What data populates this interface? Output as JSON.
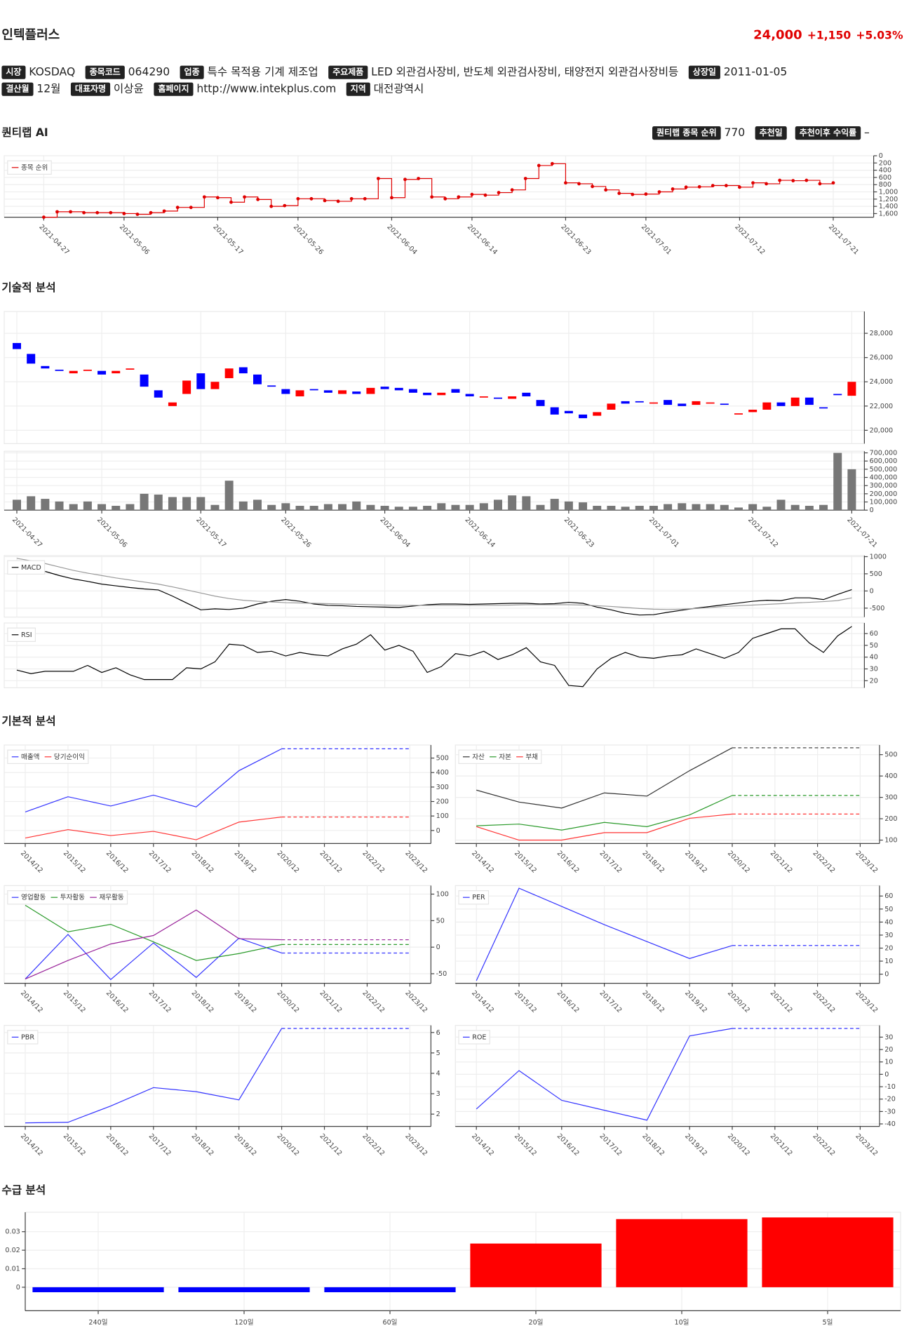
{
  "header": {
    "name": "인텍플러스",
    "price": "24,000",
    "change": "+1,150",
    "change_pct": "+5.03%",
    "info_rows": [
      [
        {
          "label": "시장",
          "value": "KOSDAQ"
        },
        {
          "label": "종목코드",
          "value": "064290"
        },
        {
          "label": "업종",
          "value": "특수 목적용 기계 제조업"
        },
        {
          "label": "주요제품",
          "value": "LED 외관검사장비, 반도체 외관검사장비, 태양전지 외관검사장비등"
        },
        {
          "label": "상장일",
          "value": "2011-01-05"
        }
      ],
      [
        {
          "label": "결산월",
          "value": "12월"
        },
        {
          "label": "대표자명",
          "value": "이상윤"
        },
        {
          "label": "홈페이지",
          "value": "http://www.intekplus.com",
          "link": true
        },
        {
          "label": "지역",
          "value": "대전광역시"
        }
      ]
    ]
  },
  "sections": {
    "ai": "퀀티랩 AI",
    "technical": "기술적 분석",
    "fundamental": "기본적 분석",
    "supply": "수급 분석"
  },
  "ai": {
    "items": [
      {
        "label": "퀀티랩 종목 순위",
        "value": "770"
      },
      {
        "label": "추천일"
      },
      {
        "label": "추천이후 수익률",
        "value": "–"
      }
    ]
  },
  "chart_data": [
    {
      "type": "step",
      "categories": [
        "2021-04-27",
        null,
        null,
        null,
        null,
        null,
        "2021-05-06",
        null,
        null,
        null,
        null,
        null,
        null,
        "2021-05-17",
        null,
        null,
        null,
        null,
        null,
        "2021-05-26",
        null,
        null,
        null,
        null,
        null,
        null,
        "2021-06-04",
        null,
        null,
        null,
        null,
        null,
        "2021-06-14",
        null,
        null,
        null,
        null,
        null,
        null,
        "2021-06-23",
        null,
        null,
        null,
        null,
        null,
        "2021-07-01",
        null,
        null,
        null,
        null,
        null,
        null,
        "2021-07-12",
        null,
        null,
        null,
        null,
        null,
        null,
        "2021-07-21"
      ],
      "series": [
        {
          "name": "종목 순위",
          "color": "#e00000",
          "values": [
            1700,
            1550,
            1550,
            1575,
            1575,
            1575,
            1600,
            1620,
            1575,
            1530,
            1430,
            1430,
            1140,
            1160,
            1285,
            1140,
            1210,
            1400,
            1380,
            1190,
            1190,
            1240,
            1260,
            1190,
            1190,
            630,
            1160,
            655,
            630,
            1140,
            1190,
            1140,
            1070,
            1090,
            1020,
            945,
            630,
            270,
            220,
            750,
            775,
            850,
            945,
            1040,
            1070,
            1060,
            1000,
            920,
            870,
            860,
            825,
            825,
            870,
            750,
            775,
            680,
            690,
            680,
            775,
            750
          ]
        }
      ],
      "ylim": [
        0,
        1700
      ],
      "y_inverted": true,
      "ytick_color": "#e00000",
      "yticks": [
        0,
        200,
        400,
        600,
        800,
        {
          "value": 1000,
          "label": "1,000"
        },
        {
          "value": 1200,
          "label": "1,200"
        },
        {
          "value": 1400,
          "label": "1,400"
        },
        {
          "value": 1600,
          "label": "1,600"
        }
      ],
      "grid": true
    },
    {
      "type": "candlestick",
      "up_color": "#ff0000",
      "down_color": "#0000ff",
      "open": [
        27200,
        26300,
        25300,
        25000,
        24700,
        24900,
        24900,
        24700,
        25000,
        24600,
        23300,
        22000,
        23000,
        24700,
        23400,
        24300,
        25200,
        24600,
        23700,
        23400,
        22800,
        23400,
        23300,
        23000,
        23200,
        23000,
        23600,
        23500,
        23400,
        23100,
        22900,
        23400,
        23000,
        22700,
        22700,
        22600,
        23100,
        22500,
        21900,
        21600,
        21300,
        21200,
        21700,
        22400,
        22400,
        22200,
        22500,
        22200,
        22100,
        22200,
        22200,
        21300,
        21500,
        21700,
        22300,
        22000,
        22700,
        21900,
        23000,
        22850
      ],
      "close": [
        26700,
        25500,
        25100,
        24900,
        24900,
        25000,
        24600,
        24900,
        25100,
        23600,
        22700,
        22300,
        24100,
        23400,
        24000,
        25100,
        24700,
        23800,
        23600,
        23000,
        23300,
        23300,
        23100,
        23300,
        23000,
        23500,
        23400,
        23300,
        23100,
        22900,
        23100,
        23100,
        22800,
        22800,
        22600,
        22800,
        22800,
        22000,
        21300,
        21400,
        21000,
        21500,
        22200,
        22200,
        22300,
        22300,
        22100,
        22000,
        22400,
        22300,
        22100,
        21400,
        21700,
        22300,
        22000,
        22700,
        22100,
        21800,
        22900,
        24000
      ],
      "ylim": [
        18900,
        29800
      ],
      "yticks": [
        {
          "value": 20000,
          "label": "20,000"
        },
        {
          "value": 22000,
          "label": "22,000"
        },
        {
          "value": 24000,
          "label": "24,000"
        },
        {
          "value": 26000,
          "label": "26,000"
        },
        {
          "value": 28000,
          "label": "28,000"
        }
      ],
      "grid": true
    },
    {
      "type": "bar",
      "color": "#777777",
      "categories": [
        "2021-04-27",
        null,
        null,
        null,
        null,
        null,
        "2021-05-06",
        null,
        null,
        null,
        null,
        null,
        null,
        "2021-05-17",
        null,
        null,
        null,
        null,
        null,
        "2021-05-26",
        null,
        null,
        null,
        null,
        null,
        null,
        "2021-06-04",
        null,
        null,
        null,
        null,
        null,
        "2021-06-14",
        null,
        null,
        null,
        null,
        null,
        null,
        "2021-06-23",
        null,
        null,
        null,
        null,
        null,
        "2021-07-01",
        null,
        null,
        null,
        null,
        null,
        null,
        "2021-07-12",
        null,
        null,
        null,
        null,
        null,
        null,
        "2021-07-21"
      ],
      "values": [
        127000,
        170000,
        138000,
        106000,
        74000,
        106000,
        74000,
        53000,
        74000,
        200000,
        190000,
        160000,
        160000,
        160000,
        64000,
        360000,
        106000,
        127000,
        64000,
        85000,
        53000,
        53000,
        74000,
        74000,
        106000,
        64000,
        53000,
        42000,
        42000,
        53000,
        85000,
        64000,
        64000,
        85000,
        127000,
        180000,
        170000,
        64000,
        138000,
        106000,
        95000,
        53000,
        53000,
        42000,
        53000,
        53000,
        74000,
        85000,
        74000,
        74000,
        64000,
        32000,
        74000,
        42000,
        127000,
        64000,
        53000,
        64000,
        700000,
        500000
      ],
      "ylim": [
        0,
        720000
      ],
      "yticks": [
        0,
        {
          "value": 100000,
          "label": "100,000"
        },
        {
          "value": 200000,
          "label": "200,000"
        },
        {
          "value": 300000,
          "label": "300,000"
        },
        {
          "value": 400000,
          "label": "400,000"
        },
        {
          "value": 500000,
          "label": "500,000"
        },
        {
          "value": 600000,
          "label": "600,000"
        },
        {
          "value": 700000,
          "label": "700,000"
        }
      ],
      "grid": true
    },
    {
      "type": "line",
      "series": [
        {
          "name": "MACD",
          "color": "#000000",
          "values": [
            null,
            null,
            570,
            450,
            350,
            280,
            200,
            150,
            100,
            60,
            30,
            -150,
            -350,
            -550,
            -520,
            -540,
            -500,
            -380,
            -300,
            -250,
            -300,
            -380,
            -420,
            -430,
            -450,
            -460,
            -470,
            -480,
            -440,
            -400,
            -380,
            -380,
            -390,
            -380,
            -370,
            -360,
            -360,
            -380,
            -370,
            -330,
            -360,
            -470,
            -550,
            -650,
            -700,
            -690,
            -620,
            -560,
            -500,
            -450,
            -400,
            -350,
            -300,
            -270,
            -280,
            -200,
            -200,
            -250,
            -100,
            40
          ]
        },
        {
          "color": "#999999",
          "values": [
            950,
            880,
            800,
            700,
            600,
            520,
            450,
            380,
            320,
            260,
            200,
            120,
            30,
            -60,
            -150,
            -220,
            -270,
            -300,
            -320,
            -340,
            -350,
            -360,
            -370,
            -380,
            -390,
            -400,
            -410,
            -420,
            -420,
            -420,
            -420,
            -420,
            -420,
            -420,
            -420,
            -410,
            -400,
            -400,
            -400,
            -400,
            -410,
            -430,
            -450,
            -480,
            -510,
            -530,
            -540,
            -530,
            -510,
            -480,
            -450,
            -430,
            -410,
            -390,
            -370,
            -350,
            -330,
            -310,
            -280,
            -200
          ]
        }
      ],
      "ylim": [
        -760,
        1030
      ],
      "yticks": [
        -500,
        0,
        500,
        1000
      ],
      "grid": true
    },
    {
      "type": "line",
      "series": [
        {
          "name": "RSI",
          "color": "#000000",
          "values": [
            29,
            26,
            28,
            28,
            28,
            33,
            27,
            31,
            25,
            21,
            21,
            21,
            31,
            30,
            36,
            51,
            50,
            44,
            45,
            41,
            44,
            42,
            41,
            47,
            51,
            59,
            46,
            50,
            45,
            27,
            32,
            43,
            41,
            45,
            38,
            42,
            48,
            36,
            33,
            16,
            15,
            30,
            39,
            44,
            40,
            39,
            41,
            42,
            47,
            43,
            39,
            44,
            56,
            60,
            64,
            64,
            52,
            44,
            58,
            66
          ]
        }
      ],
      "ylim": [
        14,
        69
      ],
      "yticks": [
        20,
        30,
        40,
        50,
        60
      ],
      "grid": true
    },
    {
      "type": "line",
      "extend_dashed": true,
      "categories": [
        "2014/12",
        "2015/12",
        "2016/12",
        "2017/12",
        "2018/12",
        "2019/12",
        "2020/12",
        "2021/12",
        "2022/12",
        "2023/12"
      ],
      "series": [
        {
          "name": "매출액",
          "color": "#3333ff",
          "values": [
            128,
            233,
            169,
            244,
            163,
            413,
            564,
            null,
            null,
            null
          ]
        },
        {
          "name": "당기순이익",
          "color": "#ff3333",
          "values": [
            -52,
            6,
            -35,
            -6,
            -64,
            58,
            93,
            null,
            null,
            null
          ]
        }
      ],
      "ylim": [
        -90,
        590
      ],
      "yticks": [
        0,
        100,
        200,
        300,
        400,
        500
      ],
      "grid": true
    },
    {
      "type": "line",
      "extend_dashed": true,
      "categories": [
        "2014/12",
        "2015/12",
        "2016/12",
        "2017/12",
        "2018/12",
        "2019/12",
        "2020/12",
        "2021/12",
        "2022/12",
        "2023/12"
      ],
      "series": [
        {
          "name": "자산",
          "color": "#333333",
          "values": [
            334,
            278,
            250,
            321,
            306,
            425,
            532,
            null,
            null,
            null
          ]
        },
        {
          "name": "자본",
          "color": "#2a9a2a",
          "values": [
            167,
            175,
            147,
            183,
            163,
            218,
            309,
            null,
            null,
            null
          ]
        },
        {
          "name": "부채",
          "color": "#ff3333",
          "values": [
            163,
            100,
            100,
            135,
            135,
            202,
            222,
            null,
            null,
            null
          ]
        }
      ],
      "ylim": [
        84,
        545
      ],
      "yticks": [
        100,
        200,
        300,
        400,
        500
      ],
      "grid": true
    },
    {
      "type": "line",
      "extend_dashed": true,
      "categories": [
        "2014/12",
        "2015/12",
        "2016/12",
        "2017/12",
        "2018/12",
        "2019/12",
        "2020/12",
        "2021/12",
        "2022/12",
        "2023/12"
      ],
      "series": [
        {
          "name": "영업활동",
          "color": "#3333ff",
          "values": [
            -60,
            24,
            -61,
            8,
            -57,
            17,
            -11,
            null,
            null,
            null
          ]
        },
        {
          "name": "투자활동",
          "color": "#2a9a2a",
          "values": [
            79,
            29,
            43,
            10,
            -25,
            -12,
            5,
            null,
            null,
            null
          ]
        },
        {
          "name": "재무활동",
          "color": "#992299",
          "values": [
            -60,
            -25,
            6,
            22,
            70,
            16,
            14,
            null,
            null,
            null
          ]
        }
      ],
      "ylim": [
        -68,
        116
      ],
      "yticks": [
        -50,
        0,
        50,
        100
      ],
      "grid": true
    },
    {
      "type": "line",
      "extend_dashed": true,
      "categories": [
        "2014/12",
        "2015/12",
        "2016/12",
        "2017/12",
        "2018/12",
        "2019/12",
        "2020/12",
        "2021/12",
        "2022/12",
        "2023/12"
      ],
      "series": [
        {
          "name": "PER",
          "color": "#3333ff",
          "values": [
            -5,
            66,
            52,
            38,
            25,
            12,
            22,
            null,
            null,
            null
          ]
        }
      ],
      "ylim": [
        -7,
        68
      ],
      "yticks": [
        0,
        10,
        20,
        30,
        40,
        50,
        60
      ],
      "grid": true
    },
    {
      "type": "line",
      "extend_dashed": true,
      "categories": [
        "2014/12",
        "2015/12",
        "2016/12",
        "2017/12",
        "2018/12",
        "2019/12",
        "2020/12",
        "2021/12",
        "2022/12",
        "2023/12"
      ],
      "series": [
        {
          "name": "PBR",
          "color": "#3333ff",
          "values": [
            1.57,
            1.6,
            2.4,
            3.3,
            3.1,
            2.7,
            6.2,
            null,
            null,
            null
          ]
        }
      ],
      "ylim": [
        1.4,
        6.35
      ],
      "yticks": [
        2,
        3,
        4,
        5,
        6
      ],
      "grid": true
    },
    {
      "type": "line",
      "extend_dashed": true,
      "categories": [
        "2014/12",
        "2015/12",
        "2016/12",
        "2017/12",
        "2018/12",
        "2019/12",
        "2020/12",
        "2021/12",
        "2022/12",
        "2023/12"
      ],
      "series": [
        {
          "name": "ROE",
          "color": "#3333ff",
          "values": [
            -28,
            3,
            -21,
            -29,
            -37,
            31,
            37,
            null,
            null,
            null
          ]
        }
      ],
      "ylim": [
        -42,
        39.5
      ],
      "yticks": [
        -40,
        -30,
        -20,
        -10,
        0,
        10,
        20,
        30
      ],
      "grid": true
    },
    {
      "type": "bar",
      "categories": [
        "240일",
        "120일",
        "60일",
        "20일",
        "10일",
        "5일"
      ],
      "values": [
        -0.0027,
        -0.0027,
        -0.0027,
        0.0236,
        0.0368,
        0.0377
      ],
      "colors": [
        "#0000ff",
        "#0000ff",
        "#0000ff",
        "#ff0000",
        "#ff0000",
        "#ff0000"
      ],
      "ylim": [
        -0.0127,
        0.0405
      ],
      "yticks": [
        0,
        0.01,
        0.02,
        0.03
      ],
      "grid": true
    }
  ]
}
